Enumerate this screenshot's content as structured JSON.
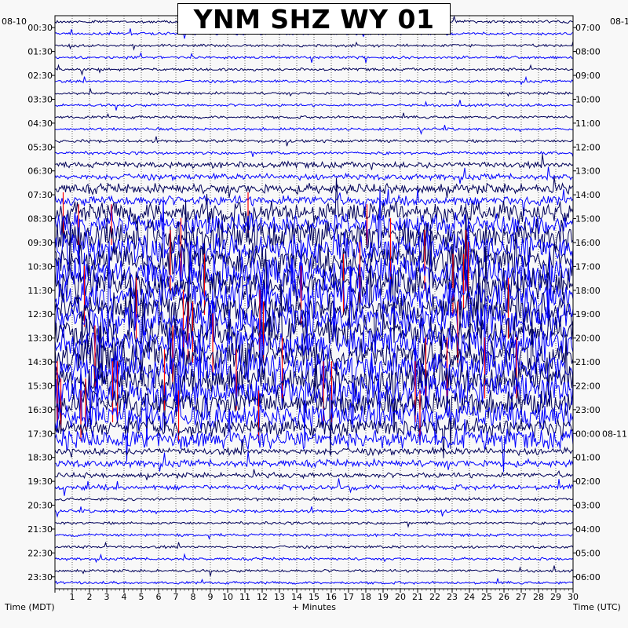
{
  "chart_data": {
    "type": "line",
    "title": "YNM SHZ WY 01",
    "left_date": "08-10",
    "right_date": "08-1",
    "right_date_change": "08-11",
    "left_axis_title": "Time (MDT)",
    "right_axis_title": "Time (UTC)",
    "x_axis_title": "+ Minutes",
    "xlim": [
      0,
      30
    ],
    "x_ticks": [
      "1",
      "2",
      "3",
      "4",
      "5",
      "6",
      "7",
      "8",
      "9",
      "10",
      "11",
      "12",
      "13",
      "14",
      "15",
      "16",
      "17",
      "18",
      "19",
      "20",
      "21",
      "22",
      "23",
      "24",
      "25",
      "26",
      "27",
      "28",
      "29",
      "30"
    ],
    "left_labels": [
      "00:30",
      "01:30",
      "02:30",
      "03:30",
      "04:30",
      "05:30",
      "06:30",
      "07:30",
      "08:30",
      "09:30",
      "10:30",
      "11:30",
      "12:30",
      "13:30",
      "14:30",
      "15:30",
      "16:30",
      "17:30",
      "18:30",
      "19:30",
      "20:30",
      "21:30",
      "22:30",
      "23:30"
    ],
    "right_labels": [
      "07:00",
      "08:00",
      "09:00",
      "10:00",
      "11:00",
      "12:00",
      "13:00",
      "14:00",
      "15:00",
      "16:00",
      "17:00",
      "18:00",
      "19:00",
      "20:00",
      "21:00",
      "22:00",
      "23:00",
      "00:00",
      "01:00",
      "02:00",
      "03:00",
      "04:00",
      "05:00",
      "06:00"
    ],
    "trace_count": 48,
    "trace_colors": [
      "#00005a",
      "#0000ff"
    ],
    "clip_color": "#ff0000",
    "activity_by_hour": [
      0.1,
      0.1,
      0.1,
      0.1,
      0.1,
      0.15,
      0.35,
      0.5,
      0.8,
      1.0,
      1.0,
      1.0,
      1.0,
      1.0,
      1.0,
      1.0,
      0.9,
      0.75,
      0.4,
      0.3,
      0.15,
      0.12,
      0.1,
      0.1
    ]
  }
}
